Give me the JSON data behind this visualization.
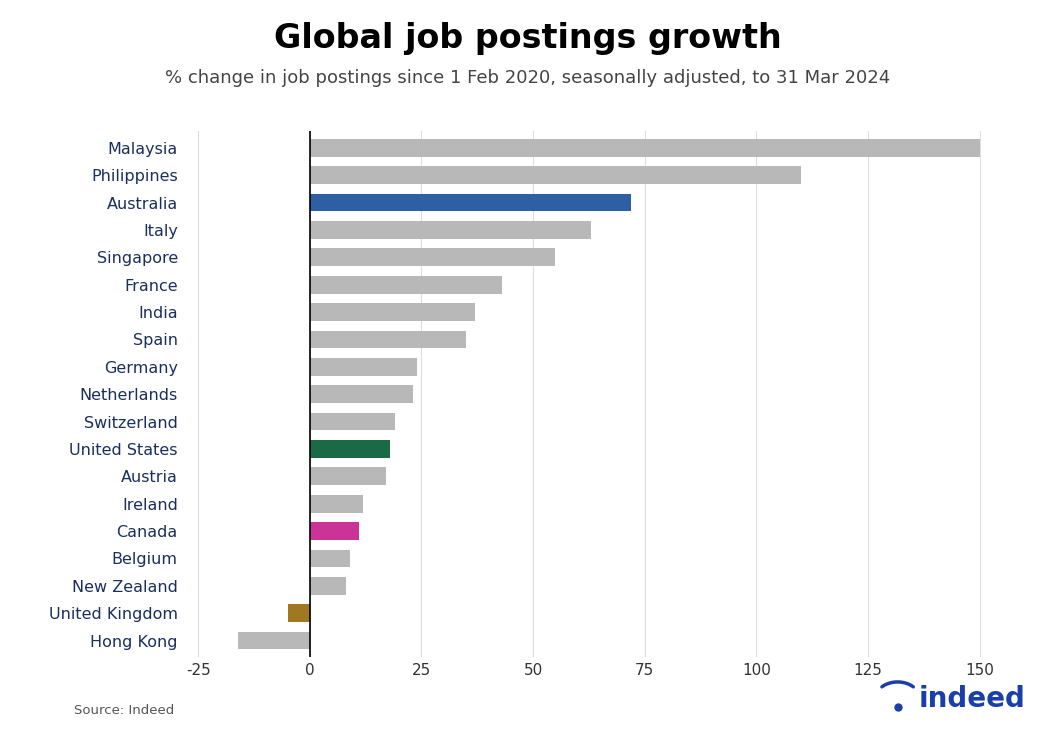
{
  "title": "Global job postings growth",
  "subtitle": "% change in job postings since 1 Feb 2020, seasonally adjusted, to 31 Mar 2024",
  "source": "Source: Indeed",
  "countries": [
    "Hong Kong",
    "United Kingdom",
    "New Zealand",
    "Belgium",
    "Canada",
    "Ireland",
    "Austria",
    "United States",
    "Switzerland",
    "Netherlands",
    "Germany",
    "Spain",
    "India",
    "France",
    "Singapore",
    "Italy",
    "Australia",
    "Philippines",
    "Malaysia"
  ],
  "values": [
    -16,
    -5,
    8,
    9,
    11,
    12,
    17,
    18,
    19,
    23,
    24,
    35,
    37,
    43,
    55,
    63,
    72,
    110,
    150
  ],
  "colors": [
    "#b8b8b8",
    "#a07820",
    "#b8b8b8",
    "#b8b8b8",
    "#cc3399",
    "#b8b8b8",
    "#b8b8b8",
    "#1a6b45",
    "#b8b8b8",
    "#b8b8b8",
    "#b8b8b8",
    "#b8b8b8",
    "#b8b8b8",
    "#b8b8b8",
    "#b8b8b8",
    "#b8b8b8",
    "#2e5fa3",
    "#b8b8b8",
    "#b8b8b8"
  ],
  "label_color": "#1a2f5e",
  "xlim": [
    -28,
    160
  ],
  "xticks": [
    -25,
    0,
    25,
    50,
    75,
    100,
    125,
    150
  ],
  "title_fontsize": 24,
  "subtitle_fontsize": 13,
  "label_fontsize": 11.5,
  "tick_fontsize": 11,
  "background_color": "#ffffff",
  "indeed_blue": "#1a3faa",
  "grid_color": "#dddddd"
}
